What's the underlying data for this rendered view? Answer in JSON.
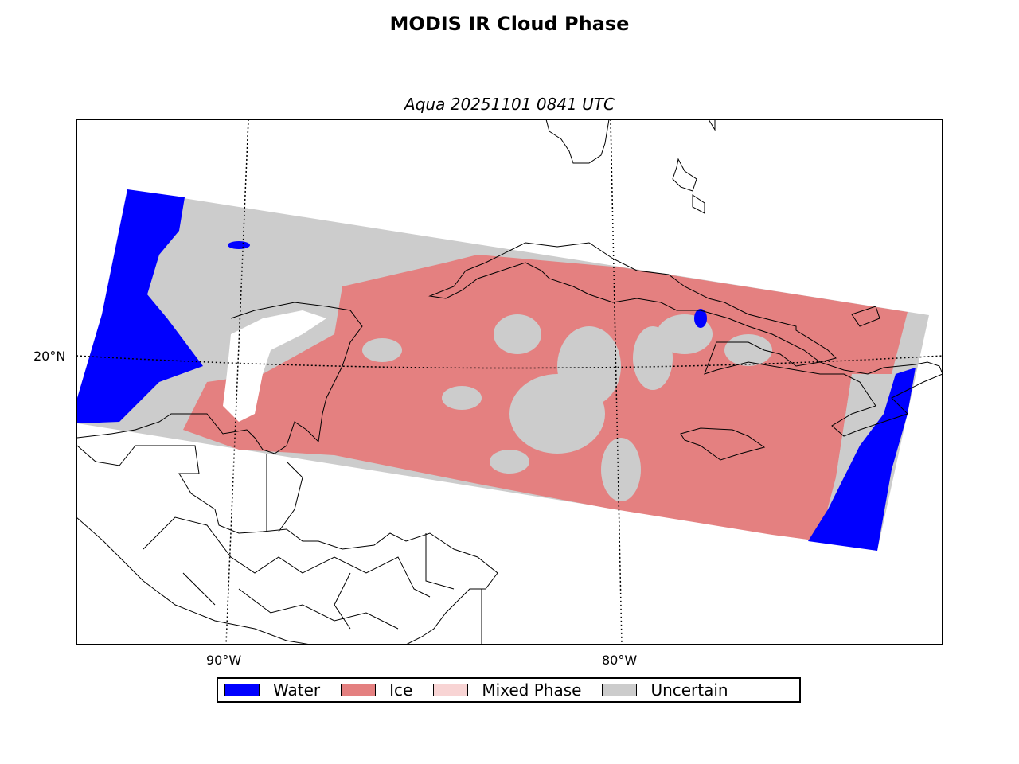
{
  "title": "MODIS IR Cloud Phase",
  "subtitle": "Aqua 20251101 0841 UTC",
  "map": {
    "projection": "lat-lon",
    "meridians": [
      "90°W",
      "80°W"
    ],
    "parallels": [
      "20°N"
    ],
    "gridline_style": "dotted"
  },
  "legend": [
    {
      "label": "Water",
      "color": "#0000ff"
    },
    {
      "label": "Ice",
      "color": "#e48080"
    },
    {
      "label": "Mixed Phase",
      "color": "#f8d4d4"
    },
    {
      "label": "Uncertain",
      "color": "#cccccc"
    }
  ]
}
